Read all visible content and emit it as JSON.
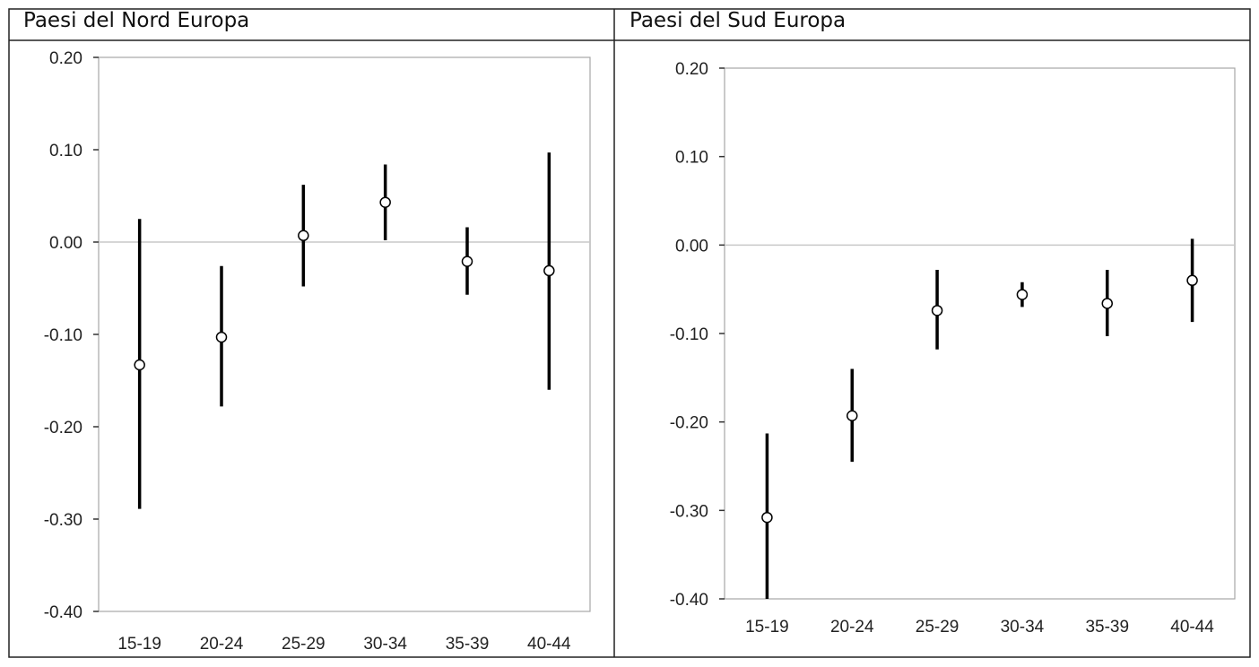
{
  "chart_data": [
    {
      "type": "errorbar",
      "title": "Paesi del Nord Europa",
      "categories": [
        "15-19",
        "20-24",
        "25-29",
        "30-34",
        "35-39",
        "40-44"
      ],
      "estimates": [
        -0.133,
        -0.103,
        0.007,
        0.043,
        -0.021,
        -0.031
      ],
      "lower": [
        -0.289,
        -0.178,
        -0.048,
        0.002,
        -0.057,
        -0.16
      ],
      "upper": [
        0.025,
        -0.026,
        0.062,
        0.084,
        0.016,
        0.097
      ],
      "ylim": [
        -0.4,
        0.2
      ],
      "yticks": [
        "0.20",
        "0.10",
        "0.00",
        "-0.10",
        "-0.20",
        "-0.30",
        "-0.40"
      ],
      "reference_line": 0,
      "grid": false,
      "legend": "none",
      "colors": {
        "bar": "#000000",
        "marker_fill": "#ffffff",
        "axis": "#a6a6a6",
        "zero_line": "#c8c8c8"
      }
    },
    {
      "type": "errorbar",
      "title": "Paesi del Sud Europa",
      "categories": [
        "15-19",
        "20-24",
        "25-29",
        "30-34",
        "35-39",
        "40-44"
      ],
      "estimates": [
        -0.308,
        -0.193,
        -0.074,
        -0.056,
        -0.066,
        -0.04
      ],
      "lower": [
        -0.4,
        -0.245,
        -0.118,
        -0.07,
        -0.103,
        -0.087
      ],
      "upper": [
        -0.213,
        -0.14,
        -0.028,
        -0.042,
        -0.028,
        0.007
      ],
      "ylim": [
        -0.4,
        0.2
      ],
      "yticks": [
        "0.20",
        "0.10",
        "0.00",
        "-0.10",
        "-0.20",
        "-0.30",
        "-0.40"
      ],
      "reference_line": 0,
      "grid": false,
      "legend": "none",
      "colors": {
        "bar": "#000000",
        "marker_fill": "#ffffff",
        "axis": "#a6a6a6",
        "zero_line": "#c8c8c8"
      }
    }
  ]
}
